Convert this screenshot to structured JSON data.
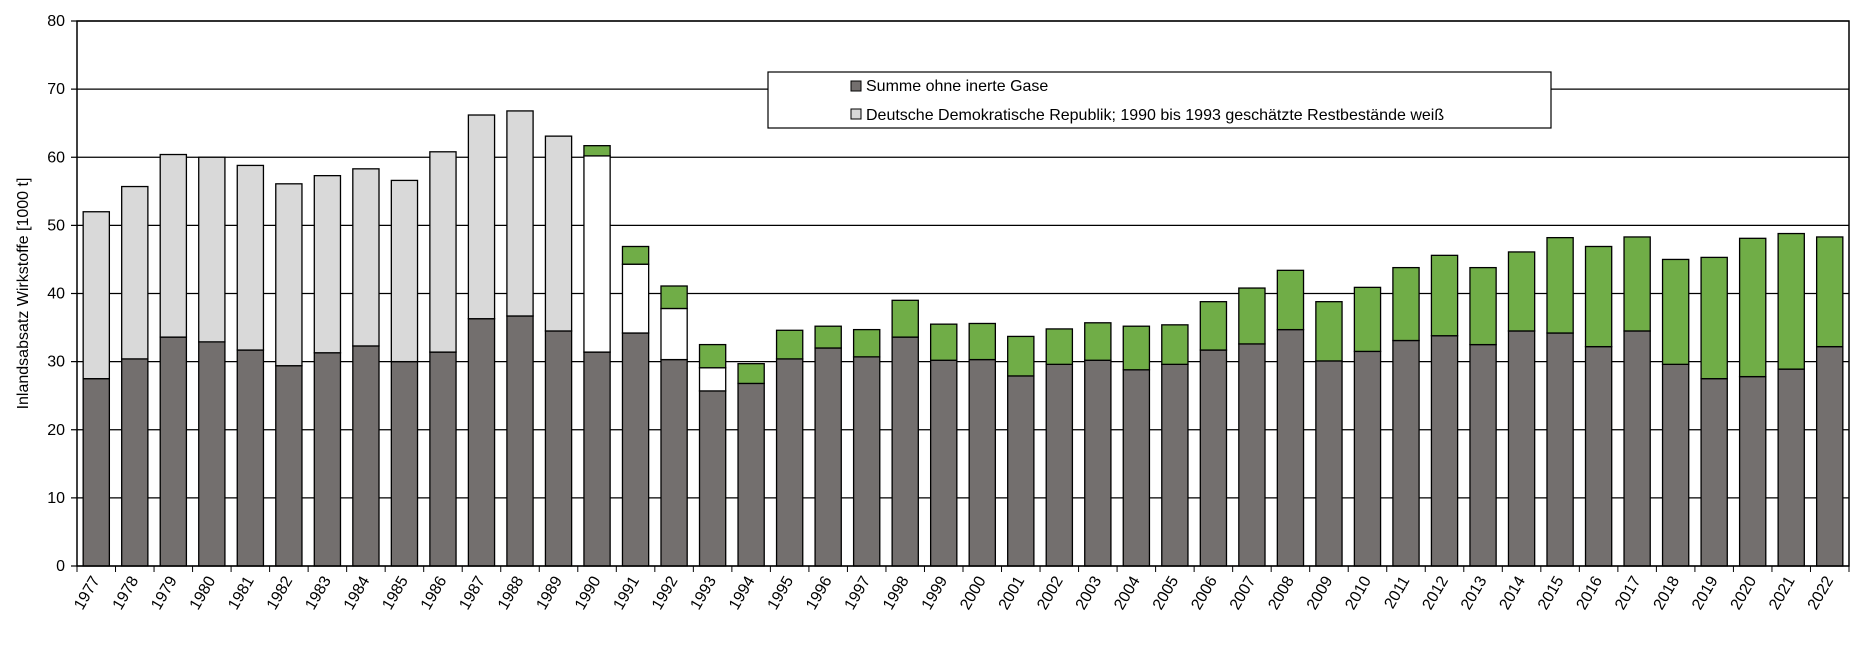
{
  "chart_data": {
    "type": "bar",
    "stacked": true,
    "ylabel": "Inlandsabsatz Wirkstoffe [1000 t]",
    "ylim": [
      0,
      80
    ],
    "yticks": [
      0,
      10,
      20,
      30,
      40,
      50,
      60,
      70,
      80
    ],
    "grid": true,
    "legend_position": "top-center",
    "categories": [
      "1977",
      "1978",
      "1979",
      "1980",
      "1981",
      "1982",
      "1983",
      "1984",
      "1985",
      "1986",
      "1987",
      "1988",
      "1989",
      "1990",
      "1991",
      "1992",
      "1993",
      "1994",
      "1995",
      "1996",
      "1997",
      "1998",
      "1999",
      "2000",
      "2001",
      "2002",
      "2003",
      "2004",
      "2005",
      "2006",
      "2007",
      "2008",
      "2009",
      "2010",
      "2011",
      "2012",
      "2013",
      "2014",
      "2015",
      "2016",
      "2017",
      "2018",
      "2019",
      "2020",
      "2021",
      "2022"
    ],
    "series": [
      {
        "name": "Summe ohne inerte Gase",
        "color": "#736f6e",
        "values": [
          27.5,
          30.4,
          33.6,
          32.9,
          31.7,
          29.4,
          31.3,
          32.3,
          30.0,
          31.4,
          36.3,
          36.7,
          34.5,
          31.4,
          34.2,
          30.3,
          25.7,
          26.8,
          30.4,
          32.0,
          30.7,
          33.6,
          30.2,
          30.3,
          27.9,
          29.6,
          30.2,
          28.8,
          29.6,
          31.7,
          32.6,
          34.7,
          30.1,
          31.5,
          33.1,
          33.8,
          32.5,
          34.5,
          34.2,
          32.2,
          34.5,
          29.6,
          27.5,
          27.8,
          28.9,
          32.2
        ]
      },
      {
        "name": "Deutsche Demokratische Republik; 1990 bis 1993 geschätzte Restbestände weiß",
        "color": "#d9d9d9",
        "values": [
          24.5,
          25.3,
          26.8,
          27.1,
          27.1,
          26.7,
          26.0,
          26.0,
          26.6,
          29.4,
          29.9,
          30.1,
          28.6,
          28.8,
          10.1,
          7.5,
          3.4,
          0,
          0,
          0,
          0,
          0,
          0,
          0,
          0,
          0,
          0,
          0,
          0,
          0,
          0,
          0,
          0,
          0,
          0,
          0,
          0,
          0,
          0,
          0,
          0,
          0,
          0,
          0,
          0,
          0
        ]
      },
      {
        "color": "#70ad47",
        "values": [
          0,
          0,
          0,
          0,
          0,
          0,
          0,
          0,
          0,
          0,
          0,
          0,
          0,
          1.5,
          2.6,
          3.3,
          3.4,
          2.9,
          4.2,
          3.2,
          4.0,
          5.4,
          5.3,
          5.3,
          5.8,
          5.2,
          5.5,
          6.4,
          5.8,
          7.1,
          8.2,
          8.7,
          8.7,
          9.4,
          10.7,
          11.8,
          11.3,
          11.6,
          14.0,
          14.7,
          13.8,
          15.4,
          17.8,
          20.3,
          19.9,
          16.1
        ]
      }
    ]
  }
}
